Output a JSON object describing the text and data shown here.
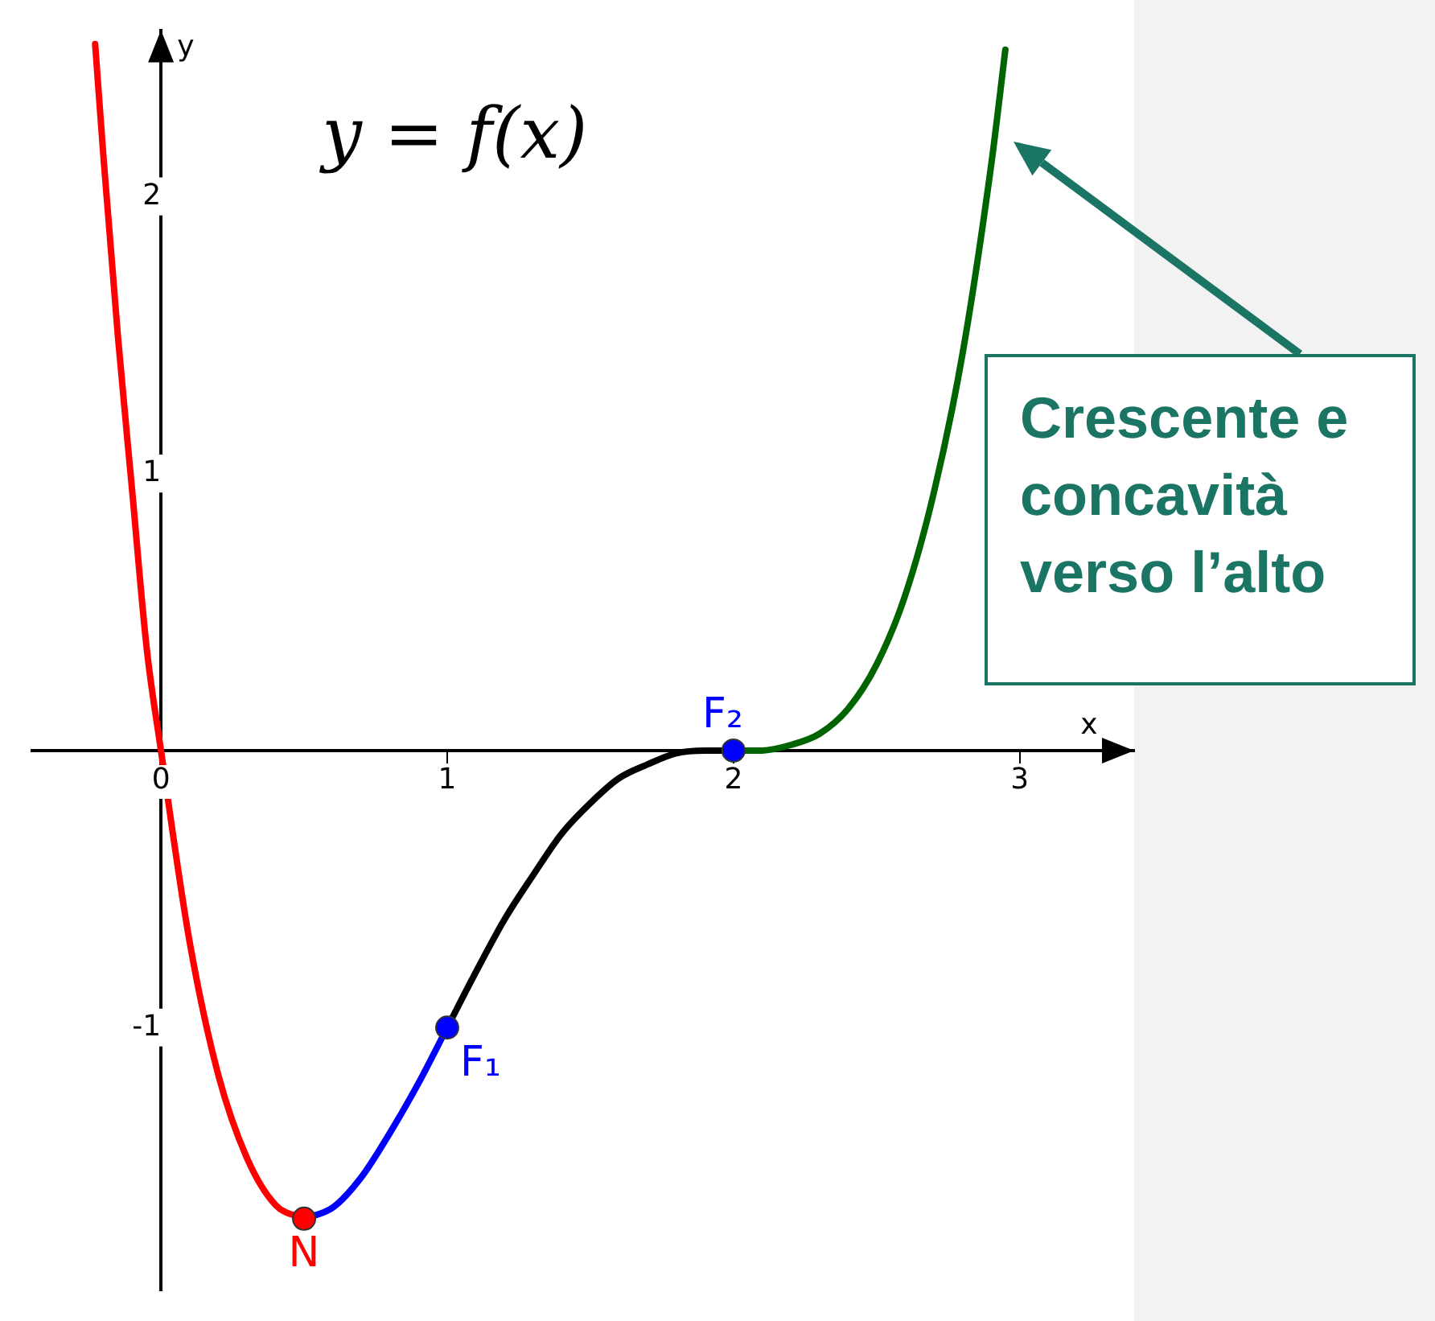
{
  "chart_data": {
    "type": "line",
    "title": "y = f(x)",
    "xlabel": "x",
    "ylabel": "y",
    "xlim": [
      -0.45,
      3.4
    ],
    "ylim": [
      -1.95,
      2.6
    ],
    "xticks": [
      0,
      1,
      2,
      3
    ],
    "yticks": [
      -1,
      1,
      2
    ],
    "grid": false,
    "legend": false,
    "marker": "none",
    "line_style": "solid",
    "series": [
      {
        "type": "line",
        "color": "#ff0000",
        "x": [
          -0.23,
          -0.2,
          -0.15,
          -0.1,
          -0.05,
          0,
          0.1,
          0.2,
          0.3,
          0.4,
          0.5
        ],
        "values": [
          2.55,
          2.13,
          1.49,
          0.93,
          0.37,
          0,
          -0.69,
          -1.17,
          -1.47,
          -1.64,
          -1.69
        ]
      },
      {
        "type": "line",
        "color": "#0000ff",
        "x": [
          0.5,
          0.6,
          0.7,
          0.8,
          0.9,
          1
        ],
        "values": [
          -1.69,
          -1.65,
          -1.54,
          -1.38,
          -1.2,
          -1
        ]
      },
      {
        "type": "line",
        "color": "#000000",
        "x": [
          1,
          1.1,
          1.2,
          1.3,
          1.4,
          1.5,
          1.6,
          1.7,
          1.8,
          1.9,
          2
        ],
        "values": [
          -1,
          -0.8,
          -0.61,
          -0.45,
          -0.3,
          -0.19,
          -0.1,
          -0.05,
          -0.01,
          0,
          0
        ]
      },
      {
        "type": "line",
        "color": "#006400",
        "x": [
          2,
          2.1,
          2.2,
          2.3,
          2.4,
          2.5,
          2.6,
          2.7,
          2.8,
          2.9,
          2.95
        ],
        "values": [
          0,
          0,
          0.02,
          0.06,
          0.15,
          0.31,
          0.56,
          0.93,
          1.43,
          2.11,
          2.53
        ]
      },
      {
        "type": "scatter",
        "marker": "circle",
        "color": "#ff0000",
        "x": [
          0.5
        ],
        "values": [
          -1.69
        ]
      },
      {
        "type": "scatter",
        "marker": "circle",
        "color": "#0000ff",
        "x": [
          1,
          2
        ],
        "values": [
          -1,
          0
        ]
      }
    ],
    "annotations": [
      {
        "text": "N",
        "x": 0.5,
        "y": -1.69
      },
      {
        "text": "F₁",
        "x": 1,
        "y": -1
      },
      {
        "text": "F₂",
        "x": 2,
        "y": 0
      },
      "Crescente e concavità verso l’alto"
    ]
  }
}
